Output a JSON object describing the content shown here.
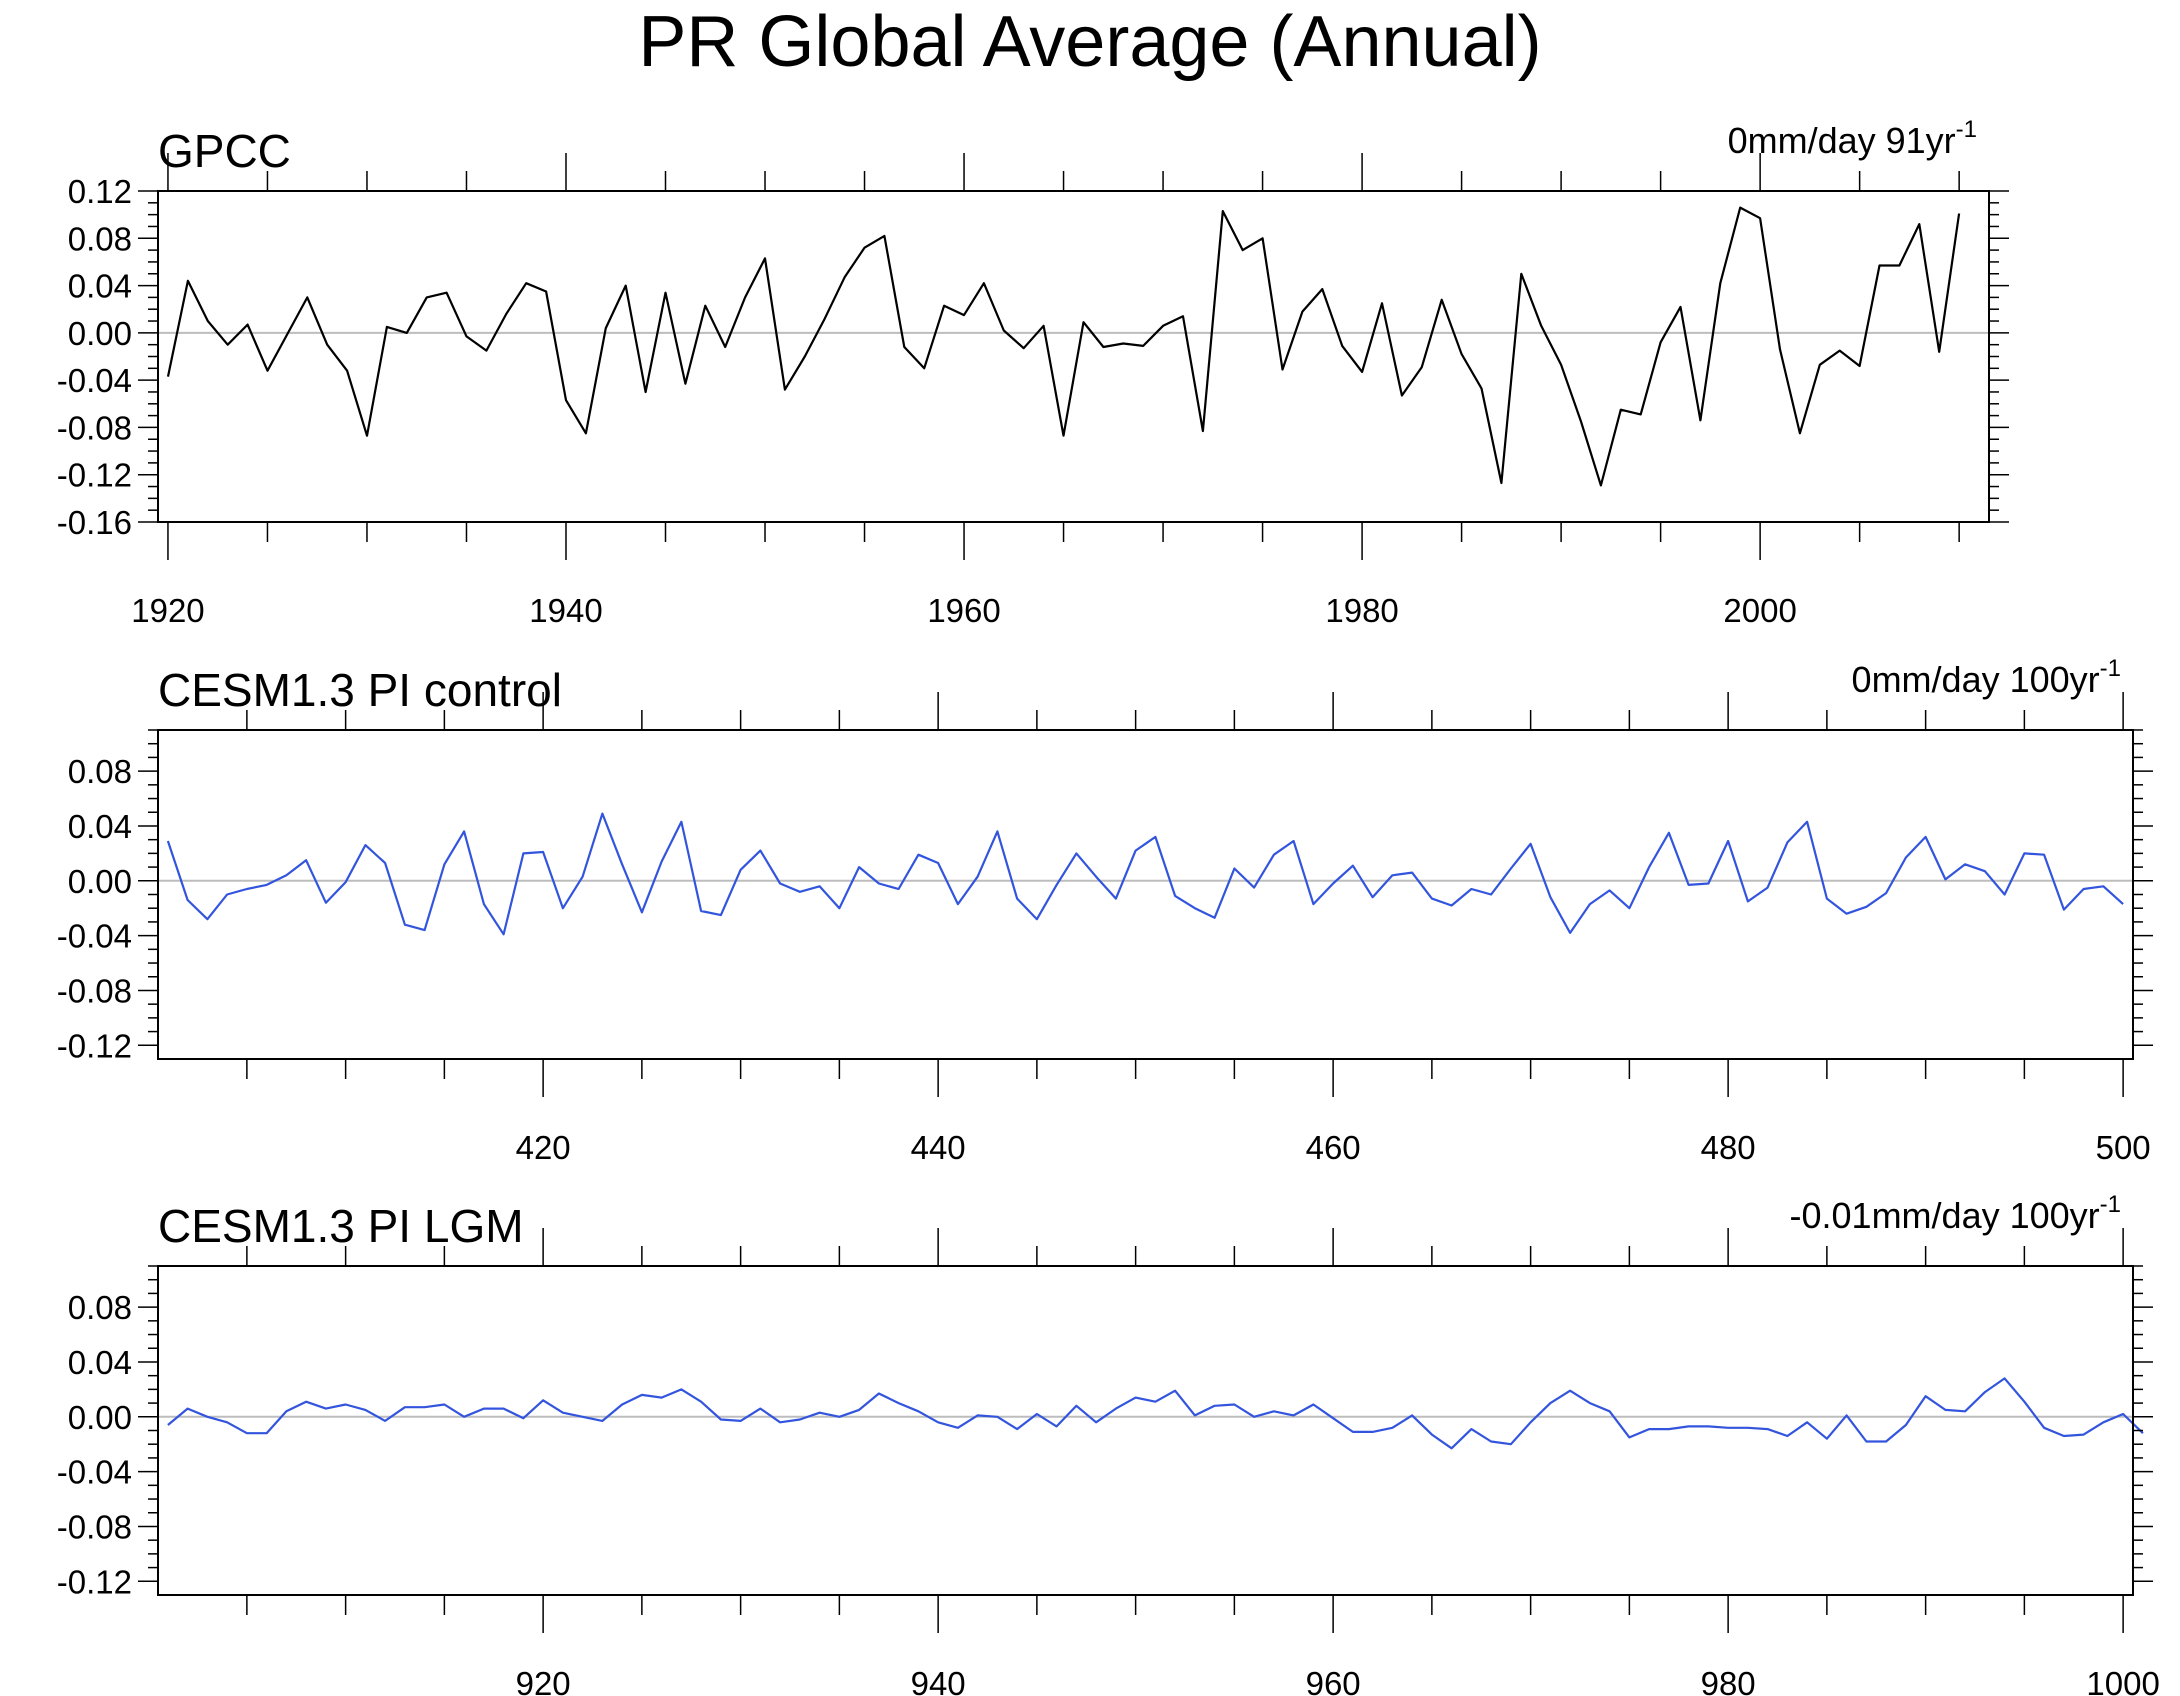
{
  "title": "PR Global Average (Annual)",
  "chart_data": [
    {
      "type": "line",
      "title": "GPCC",
      "annotation": "0mm/day 91yr",
      "annotation_sup": "-1",
      "line_color": "#000000",
      "xlim": [
        1919.5,
        2011.5
      ],
      "ylim": [
        -0.16,
        0.12
      ],
      "yticks": [
        -0.16,
        -0.12,
        -0.08,
        -0.04,
        0.0,
        0.04,
        0.08,
        0.12
      ],
      "ytick_labels": [
        "-0.16",
        "-0.12",
        "-0.08",
        "-0.04",
        "0.00",
        "0.04",
        "0.08",
        "0.12"
      ],
      "xticks": [
        1920,
        1940,
        1960,
        1980,
        2000
      ],
      "xtick_labels": [
        "1920",
        "1940",
        "1960",
        "1980",
        "2000"
      ],
      "x_start": 1920,
      "values": [
        -0.037,
        0.044,
        0.01,
        -0.01,
        0.007,
        -0.032,
        -0.001,
        0.03,
        -0.01,
        -0.032,
        -0.087,
        0.005,
        0.0,
        0.03,
        0.034,
        -0.003,
        -0.015,
        0.016,
        0.042,
        0.035,
        -0.057,
        -0.085,
        0.004,
        0.04,
        -0.05,
        0.034,
        -0.043,
        0.023,
        -0.012,
        0.03,
        0.063,
        -0.048,
        -0.02,
        0.012,
        0.047,
        0.072,
        0.082,
        -0.012,
        -0.03,
        0.023,
        0.015,
        0.042,
        0.002,
        -0.013,
        0.006,
        -0.087,
        0.009,
        -0.012,
        -0.009,
        -0.011,
        0.006,
        0.014,
        -0.083,
        0.103,
        0.07,
        0.08,
        -0.031,
        0.018,
        0.037,
        -0.011,
        -0.033,
        0.025,
        -0.053,
        -0.029,
        0.028,
        -0.018,
        -0.047,
        -0.127,
        0.05,
        0.006,
        -0.027,
        -0.075,
        -0.129,
        -0.065,
        -0.069,
        -0.008,
        0.022,
        -0.074,
        0.042,
        0.106,
        0.097,
        -0.014,
        -0.085,
        -0.027,
        -0.015,
        -0.028,
        0.057,
        0.057,
        0.092,
        -0.016,
        0.101
      ]
    },
    {
      "type": "line",
      "title": "CESM1.3 PI control",
      "annotation": "0mm/day 100yr",
      "annotation_sup": "-1",
      "line_color": "#3355dd",
      "xlim": [
        400.5,
        500.5
      ],
      "ylim": [
        -0.13,
        0.11
      ],
      "yticks": [
        -0.12,
        -0.08,
        -0.04,
        0.0,
        0.04,
        0.08
      ],
      "ytick_labels": [
        "-0.12",
        "-0.08",
        "-0.04",
        "0.00",
        "0.04",
        "0.08"
      ],
      "xticks": [
        420,
        440,
        460,
        480,
        500
      ],
      "xtick_labels": [
        "420",
        "440",
        "460",
        "480",
        "500"
      ],
      "x_start": 401,
      "values": [
        0.029,
        -0.014,
        -0.028,
        -0.01,
        -0.006,
        -0.003,
        0.004,
        0.015,
        -0.016,
        -0.001,
        0.026,
        0.013,
        -0.032,
        -0.036,
        0.012,
        0.036,
        -0.017,
        -0.039,
        0.02,
        0.021,
        -0.02,
        0.003,
        0.049,
        0.012,
        -0.023,
        0.014,
        0.043,
        -0.022,
        -0.025,
        0.008,
        0.022,
        -0.002,
        -0.008,
        -0.004,
        -0.02,
        0.01,
        -0.002,
        -0.006,
        0.019,
        0.013,
        -0.017,
        0.003,
        0.036,
        -0.013,
        -0.028,
        -0.003,
        0.02,
        0.003,
        -0.013,
        0.022,
        0.032,
        -0.011,
        -0.02,
        -0.027,
        0.009,
        -0.005,
        0.019,
        0.029,
        -0.017,
        -0.002,
        0.011,
        -0.012,
        0.004,
        0.006,
        -0.013,
        -0.018,
        -0.006,
        -0.01,
        0.009,
        0.027,
        -0.012,
        -0.038,
        -0.017,
        -0.007,
        -0.02,
        0.01,
        0.035,
        -0.003,
        -0.002,
        0.029,
        -0.015,
        -0.005,
        0.028,
        0.043,
        -0.013,
        -0.024,
        -0.019,
        -0.009,
        0.017,
        0.032,
        0.001,
        0.012,
        0.007,
        -0.01,
        0.02,
        0.019,
        -0.021,
        -0.006,
        -0.004,
        -0.017
      ]
    },
    {
      "type": "line",
      "title": "CESM1.3 PI LGM",
      "annotation": "-0.01mm/day 100yr",
      "annotation_sup": "-1",
      "line_color": "#3355dd",
      "xlim": [
        900.5,
        1000.5
      ],
      "ylim": [
        -0.13,
        0.11
      ],
      "yticks": [
        -0.12,
        -0.08,
        -0.04,
        0.0,
        0.04,
        0.08
      ],
      "ytick_labels": [
        "-0.12",
        "-0.08",
        "-0.04",
        "0.00",
        "0.04",
        "0.08"
      ],
      "xticks": [
        920,
        940,
        960,
        980,
        1000
      ],
      "xtick_labels": [
        "920",
        "940",
        "960",
        "980",
        "1000"
      ],
      "x_start": 901,
      "values": [
        -0.006,
        0.006,
        0.0,
        -0.004,
        -0.012,
        -0.012,
        0.004,
        0.011,
        0.006,
        0.009,
        0.005,
        -0.003,
        0.007,
        0.007,
        0.009,
        0.0,
        0.006,
        0.006,
        -0.001,
        0.012,
        0.003,
        0.0,
        -0.003,
        0.009,
        0.016,
        0.014,
        0.02,
        0.011,
        -0.002,
        -0.003,
        0.006,
        -0.004,
        -0.002,
        0.003,
        0.0,
        0.005,
        0.017,
        0.01,
        0.004,
        -0.004,
        -0.008,
        0.001,
        0.0,
        -0.009,
        0.002,
        -0.007,
        0.008,
        -0.004,
        0.006,
        0.014,
        0.011,
        0.019,
        0.001,
        0.008,
        0.009,
        0.0,
        0.004,
        0.001,
        0.009,
        -0.001,
        -0.011,
        -0.011,
        -0.008,
        0.001,
        -0.013,
        -0.023,
        -0.009,
        -0.018,
        -0.02,
        -0.004,
        0.01,
        0.019,
        0.01,
        0.004,
        -0.015,
        -0.009,
        -0.009,
        -0.007,
        -0.007,
        -0.008,
        -0.008,
        -0.009,
        -0.014,
        -0.004,
        -0.016,
        0.001,
        -0.018,
        -0.018,
        -0.006,
        0.015,
        0.005,
        0.004,
        0.018,
        0.028,
        0.011,
        -0.008,
        -0.014,
        -0.013,
        -0.004,
        0.002,
        -0.012
      ]
    }
  ]
}
